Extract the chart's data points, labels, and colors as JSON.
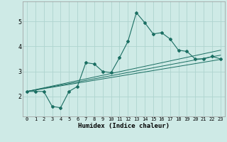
{
  "xlabel": "Humidex (Indice chaleur)",
  "background_color": "#ceeae6",
  "line_color": "#1a6e62",
  "grid_color": "#aed4cf",
  "xlim": [
    -0.5,
    23.5
  ],
  "ylim": [
    1.2,
    5.8
  ],
  "yticks": [
    2,
    3,
    4,
    5
  ],
  "xticks": [
    0,
    1,
    2,
    3,
    4,
    5,
    6,
    7,
    8,
    9,
    10,
    11,
    12,
    13,
    14,
    15,
    16,
    17,
    18,
    19,
    20,
    21,
    22,
    23
  ],
  "main_line": {
    "x": [
      0,
      1,
      2,
      3,
      4,
      5,
      6,
      7,
      8,
      9,
      10,
      11,
      12,
      13,
      14,
      15,
      16,
      17,
      18,
      19,
      20,
      21,
      22,
      23
    ],
    "y": [
      2.2,
      2.2,
      2.2,
      1.6,
      1.55,
      2.2,
      2.4,
      3.35,
      3.3,
      3.0,
      2.95,
      3.55,
      4.2,
      5.35,
      4.95,
      4.5,
      4.55,
      4.3,
      3.85,
      3.8,
      3.5,
      3.5,
      3.6,
      3.5
    ]
  },
  "upper_line": {
    "x": [
      0,
      23
    ],
    "y": [
      2.2,
      3.85
    ]
  },
  "lower_line": {
    "x": [
      0,
      23
    ],
    "y": [
      2.2,
      3.48
    ]
  },
  "mid_line": {
    "x": [
      0,
      23
    ],
    "y": [
      2.2,
      3.65
    ]
  }
}
